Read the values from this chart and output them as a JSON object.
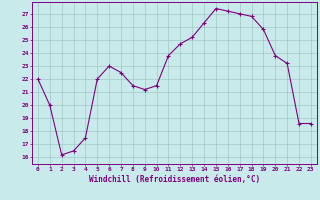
{
  "x": [
    0,
    1,
    2,
    3,
    4,
    5,
    6,
    7,
    8,
    9,
    10,
    11,
    12,
    13,
    14,
    15,
    16,
    17,
    18,
    19,
    20,
    21,
    22,
    23
  ],
  "y": [
    22,
    20,
    16.2,
    16.5,
    17.5,
    22,
    23,
    22.5,
    21.5,
    21.2,
    21.5,
    23.8,
    24.7,
    25.2,
    26.3,
    27.4,
    27.2,
    27.0,
    26.8,
    25.8,
    23.8,
    23.2,
    18.6,
    18.6
  ],
  "line_color": "#800080",
  "marker": "+",
  "bg_color": "#c8eaea",
  "grid_color": "#a0c8c8",
  "xlabel": "Windchill (Refroidissement éolien,°C)",
  "ylabel_ticks": [
    16,
    17,
    18,
    19,
    20,
    21,
    22,
    23,
    24,
    25,
    26,
    27
  ],
  "xlim": [
    -0.5,
    23.5
  ],
  "ylim": [
    15.5,
    27.9
  ],
  "xticks": [
    0,
    1,
    2,
    3,
    4,
    5,
    6,
    7,
    8,
    9,
    10,
    11,
    12,
    13,
    14,
    15,
    16,
    17,
    18,
    19,
    20,
    21,
    22,
    23
  ]
}
